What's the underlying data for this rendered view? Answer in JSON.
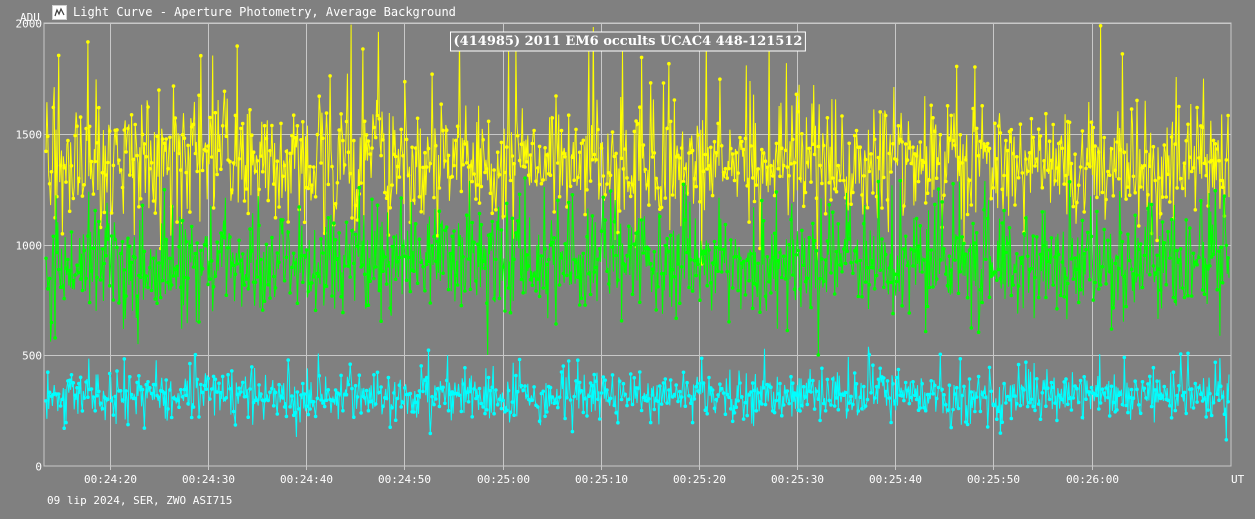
{
  "window": {
    "title": "Light Curve - Aperture Photometry, Average Background",
    "icon": "light-curve-app-icon"
  },
  "footer": {
    "text": "09 lip 2024, SER, ZWO ASI715"
  },
  "colors": {
    "background": "#808080",
    "grid": "#c8c8c8",
    "series_yellow": "#ffff00",
    "series_green": "#00ff00",
    "series_cyan": "#00ffff"
  },
  "chart_data": {
    "type": "line",
    "title": "(414985) 2011 EM6 occults UCAC4 448-121512",
    "ylabel": "ADU",
    "xlabel": "UT",
    "ylim": [
      0,
      2000
    ],
    "yticks": [
      {
        "value": 0,
        "label": "0"
      },
      {
        "value": 500,
        "label": "500"
      },
      {
        "value": 1000,
        "label": "1000"
      },
      {
        "value": 1500,
        "label": "1500"
      },
      {
        "value": 2000,
        "label": "2000"
      }
    ],
    "xlim_seconds": [
      1453.3,
      1574.2
    ],
    "xticks": [
      {
        "t": 1460,
        "label": "00:24:20"
      },
      {
        "t": 1470,
        "label": "00:24:30"
      },
      {
        "t": 1480,
        "label": "00:24:40"
      },
      {
        "t": 1490,
        "label": "00:24:50"
      },
      {
        "t": 1500,
        "label": "00:25:00"
      },
      {
        "t": 1510,
        "label": "00:25:10"
      },
      {
        "t": 1520,
        "label": "00:25:20"
      },
      {
        "t": 1530,
        "label": "00:25:30"
      },
      {
        "t": 1540,
        "label": "00:25:40"
      },
      {
        "t": 1550,
        "label": "00:25:50"
      },
      {
        "t": 1560,
        "label": "00:26:00"
      }
    ],
    "grid": true,
    "series": [
      {
        "color": "#ffff00",
        "mean": 1380,
        "sd": 140,
        "spike_max": 2000
      },
      {
        "color": "#00ff00",
        "mean": 920,
        "sd": 130,
        "spike_max": 1300
      },
      {
        "color": "#00ffff",
        "mean": 320,
        "sd": 55,
        "spike_max": 540
      }
    ]
  }
}
